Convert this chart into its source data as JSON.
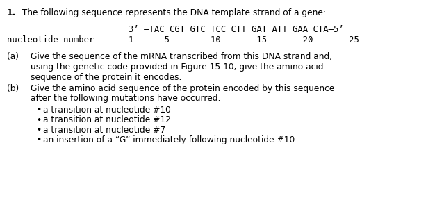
{
  "bg_color": "#ffffff",
  "font_size": 8.8,
  "mono_font_size": 8.8,
  "title_number": "1.",
  "title_rest": "  The following sequence represents the DNA template strand of a gene:",
  "dna_line": "3’ –TAC CGT GTC TCC CTT GAT ATT GAA CTA–5’",
  "num_label": "nucleotide number",
  "num_numbers": "1      5        10       15       20       25",
  "part_a_label": "(a)",
  "part_a_lines": [
    "Give the sequence of the mRNA transcribed from this DNA strand and,",
    "using the genetic code provided in Figure 15.10, give the amino acid",
    "sequence of the protein it encodes."
  ],
  "part_b_label": "(b)",
  "part_b_lines": [
    "Give the amino acid sequence of the protein encoded by this sequence",
    "after the following mutations have occurred:"
  ],
  "bullets": [
    "a transition at nucleotide #10",
    "a transition at nucleotide #12",
    "a transition at nucleotide #7",
    "an insertion of a “G” immediately following nucleotide #10"
  ]
}
